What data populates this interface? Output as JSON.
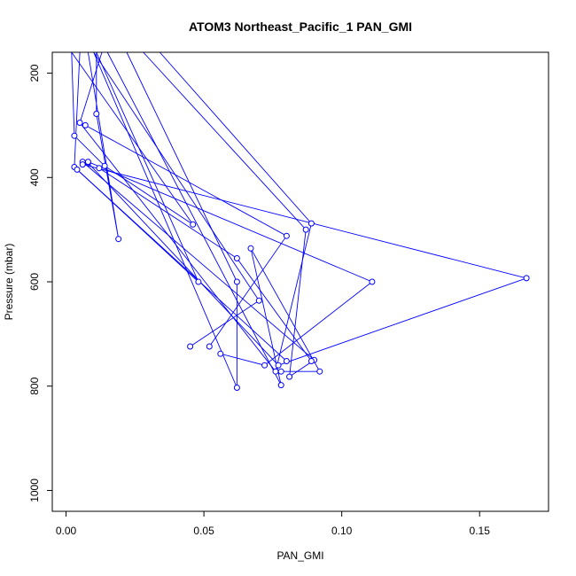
{
  "chart_data": {
    "type": "line",
    "title": "ATOM3 Northeast_Pacific_1 PAN_GMI",
    "xlabel": "PAN_GMI",
    "ylabel": "Pressure (mbar)",
    "xlim": [
      -0.005,
      0.175
    ],
    "ylim": [
      1040,
      160
    ],
    "y_reversed": true,
    "xticks": [
      {
        "value": 0.0,
        "label": "0.00"
      },
      {
        "value": 0.05,
        "label": "0.05"
      },
      {
        "value": 0.1,
        "label": "0.10"
      },
      {
        "value": 0.15,
        "label": "0.15"
      }
    ],
    "yticks": [
      {
        "value": 200,
        "label": "200"
      },
      {
        "value": 400,
        "label": "400"
      },
      {
        "value": 600,
        "label": "600"
      },
      {
        "value": 800,
        "label": "800"
      },
      {
        "value": 1000,
        "label": "1000"
      }
    ],
    "grid": false,
    "legend": "none",
    "colors": {
      "series": "#0000ff",
      "axis": "#000000"
    },
    "series": [
      {
        "values": [
          {
            "x": 0.002,
            "y": 160
          },
          {
            "x": 0.003,
            "y": 320
          },
          {
            "x": 0.014,
            "y": 378
          },
          {
            "x": 0.046,
            "y": 490
          },
          {
            "x": 0.002,
            "y": 160
          }
        ]
      },
      {
        "values": [
          {
            "x": 0.005,
            "y": 160
          },
          {
            "x": 0.003,
            "y": 380
          },
          {
            "x": 0.048,
            "y": 600
          },
          {
            "x": 0.011,
            "y": 160
          }
        ]
      },
      {
        "values": [
          {
            "x": 0.011,
            "y": 160
          },
          {
            "x": 0.011,
            "y": 278
          },
          {
            "x": 0.019,
            "y": 518
          },
          {
            "x": 0.008,
            "y": 160
          }
        ]
      },
      {
        "values": [
          {
            "x": 0.013,
            "y": 160
          },
          {
            "x": 0.005,
            "y": 295
          },
          {
            "x": 0.076,
            "y": 772
          },
          {
            "x": 0.089,
            "y": 488
          },
          {
            "x": 0.034,
            "y": 160
          }
        ]
      },
      {
        "values": [
          {
            "x": 0.028,
            "y": 160
          },
          {
            "x": 0.087,
            "y": 500
          },
          {
            "x": 0.081,
            "y": 782
          },
          {
            "x": 0.09,
            "y": 750
          },
          {
            "x": 0.006,
            "y": 370
          }
        ]
      },
      {
        "values": [
          {
            "x": 0.006,
            "y": 375
          },
          {
            "x": 0.167,
            "y": 593
          },
          {
            "x": 0.077,
            "y": 760
          },
          {
            "x": 0.008,
            "y": 372
          }
        ]
      },
      {
        "values": [
          {
            "x": 0.008,
            "y": 370
          },
          {
            "x": 0.111,
            "y": 600
          },
          {
            "x": 0.072,
            "y": 760
          },
          {
            "x": 0.056,
            "y": 738
          }
        ]
      },
      {
        "values": [
          {
            "x": 0.007,
            "y": 300
          },
          {
            "x": 0.08,
            "y": 512
          },
          {
            "x": 0.052,
            "y": 724
          }
        ]
      },
      {
        "values": [
          {
            "x": 0.022,
            "y": 160
          },
          {
            "x": 0.062,
            "y": 600
          },
          {
            "x": 0.062,
            "y": 803
          },
          {
            "x": 0.01,
            "y": 160
          }
        ]
      },
      {
        "values": [
          {
            "x": 0.01,
            "y": 160
          },
          {
            "x": 0.07,
            "y": 636
          },
          {
            "x": 0.045,
            "y": 724
          }
        ]
      },
      {
        "values": [
          {
            "x": 0.015,
            "y": 160
          },
          {
            "x": 0.078,
            "y": 798
          },
          {
            "x": 0.067,
            "y": 536
          },
          {
            "x": 0.092,
            "y": 772
          },
          {
            "x": 0.078,
            "y": 772
          }
        ]
      },
      {
        "values": [
          {
            "x": 0.012,
            "y": 382
          },
          {
            "x": 0.062,
            "y": 555
          },
          {
            "x": 0.089,
            "y": 752
          }
        ]
      },
      {
        "values": [
          {
            "x": 0.004,
            "y": 385
          },
          {
            "x": 0.08,
            "y": 752
          }
        ]
      }
    ]
  }
}
